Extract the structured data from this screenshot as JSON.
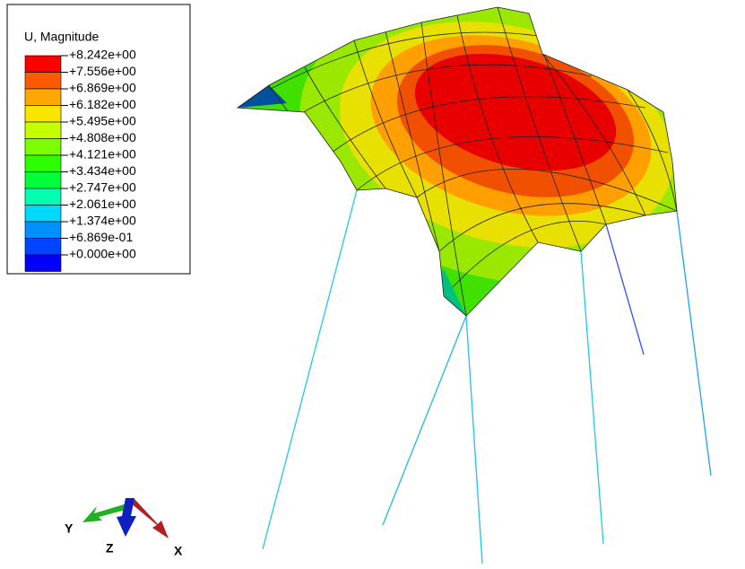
{
  "legend": {
    "title": "U, Magnitude",
    "labels": [
      "+8.242e+00",
      "+7.556e+00",
      "+6.869e+00",
      "+6.182e+00",
      "+5.495e+00",
      "+4.808e+00",
      "+4.121e+00",
      "+3.434e+00",
      "+2.747e+00",
      "+2.061e+00",
      "+1.374e+00",
      "+6.869e-01",
      "+0.000e+00"
    ],
    "colors": [
      "#ff0000",
      "#ff5a00",
      "#ffa800",
      "#fbe400",
      "#c6ff00",
      "#7cff00",
      "#2eff00",
      "#00ff3a",
      "#00ffb0",
      "#00d8ff",
      "#0090ff",
      "#0044ff",
      "#0000ff"
    ]
  },
  "triad": {
    "x": "X",
    "y": "Y",
    "z": "Z"
  }
}
